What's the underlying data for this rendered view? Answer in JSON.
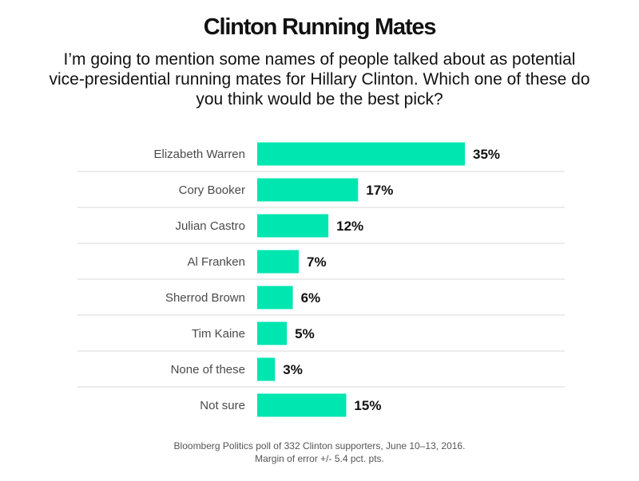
{
  "chart_data": {
    "type": "bar",
    "orientation": "horizontal",
    "title": "Clinton Running Mates",
    "subtitle": "I’m going to mention some names of people talked about as potential vice-presidential running mates for Hillary Clinton. Which one of these do you think would be the best pick?",
    "categories": [
      "Elizabeth Warren",
      "Cory Booker",
      "Julian Castro",
      "Al Franken",
      "Sherrod Brown",
      "Tim Kaine",
      "None of these",
      "Not sure"
    ],
    "values": [
      35,
      17,
      12,
      7,
      6,
      5,
      3,
      15
    ],
    "value_labels": [
      "35%",
      "17%",
      "12%",
      "7%",
      "6%",
      "5%",
      "3%",
      "15%"
    ],
    "unit": "%",
    "xlim": [
      0,
      100
    ],
    "grid": false,
    "legend": "none",
    "bar_color": "#00e6b0",
    "source_lines": [
      "Bloomberg Politics poll of 332 Clinton supporters, June 10–13, 2016.",
      "Margin of error +/- 5.4 pct. pts."
    ]
  }
}
